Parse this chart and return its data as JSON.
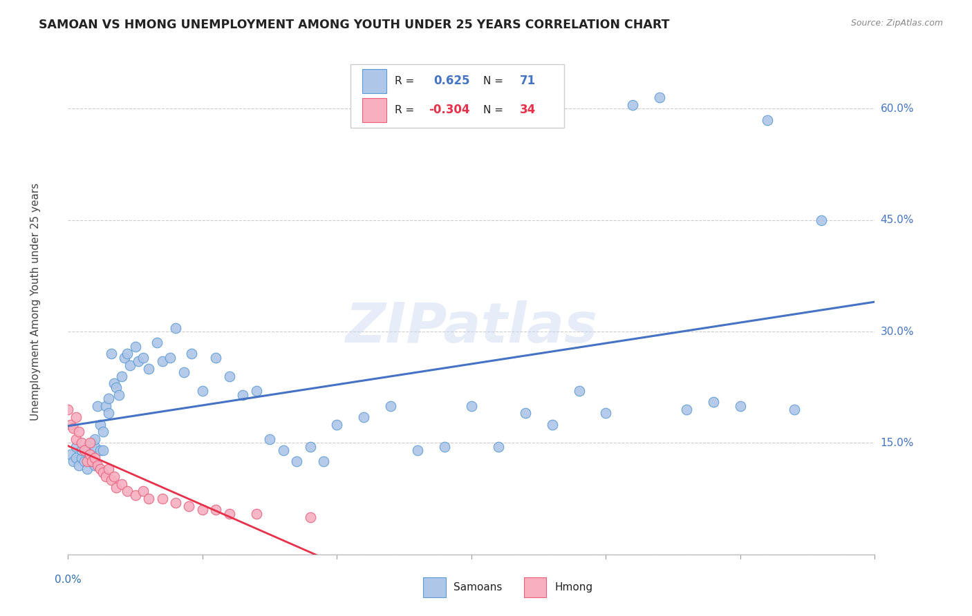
{
  "title": "SAMOAN VS HMONG UNEMPLOYMENT AMONG YOUTH UNDER 25 YEARS CORRELATION CHART",
  "source": "Source: ZipAtlas.com",
  "ylabel": "Unemployment Among Youth under 25 years",
  "x_min": 0.0,
  "x_max": 0.3,
  "y_min": 0.0,
  "y_max": 0.68,
  "yticks": [
    0.0,
    0.15,
    0.3,
    0.45,
    0.6
  ],
  "ytick_labels": [
    "",
    "15.0%",
    "30.0%",
    "45.0%",
    "60.0%"
  ],
  "r_samoan": 0.625,
  "n_samoan": 71,
  "r_hmong": -0.304,
  "n_hmong": 34,
  "samoan_color": "#aec6e8",
  "hmong_color": "#f8afc0",
  "samoan_edge_color": "#5b9bd5",
  "hmong_edge_color": "#e8607a",
  "trend_samoan_color": "#4472c4",
  "trend_hmong_color": "#e8304a",
  "watermark": "ZIPatlas",
  "samoans_x": [
    0.001,
    0.002,
    0.003,
    0.003,
    0.004,
    0.005,
    0.005,
    0.006,
    0.007,
    0.007,
    0.008,
    0.008,
    0.009,
    0.01,
    0.01,
    0.01,
    0.011,
    0.012,
    0.012,
    0.013,
    0.013,
    0.014,
    0.015,
    0.015,
    0.016,
    0.017,
    0.018,
    0.019,
    0.02,
    0.021,
    0.022,
    0.023,
    0.025,
    0.026,
    0.028,
    0.03,
    0.033,
    0.035,
    0.038,
    0.04,
    0.043,
    0.046,
    0.05,
    0.055,
    0.06,
    0.065,
    0.07,
    0.075,
    0.08,
    0.085,
    0.09,
    0.095,
    0.1,
    0.11,
    0.12,
    0.13,
    0.14,
    0.15,
    0.16,
    0.17,
    0.18,
    0.19,
    0.2,
    0.21,
    0.22,
    0.23,
    0.24,
    0.25,
    0.26,
    0.27,
    0.28
  ],
  "samoans_y": [
    0.135,
    0.125,
    0.13,
    0.145,
    0.12,
    0.13,
    0.14,
    0.125,
    0.115,
    0.145,
    0.135,
    0.125,
    0.15,
    0.12,
    0.145,
    0.155,
    0.2,
    0.175,
    0.14,
    0.165,
    0.14,
    0.2,
    0.21,
    0.19,
    0.27,
    0.23,
    0.225,
    0.215,
    0.24,
    0.265,
    0.27,
    0.255,
    0.28,
    0.26,
    0.265,
    0.25,
    0.285,
    0.26,
    0.265,
    0.305,
    0.245,
    0.27,
    0.22,
    0.265,
    0.24,
    0.215,
    0.22,
    0.155,
    0.14,
    0.125,
    0.145,
    0.125,
    0.175,
    0.185,
    0.2,
    0.14,
    0.145,
    0.2,
    0.145,
    0.19,
    0.175,
    0.22,
    0.19,
    0.605,
    0.615,
    0.195,
    0.205,
    0.2,
    0.585,
    0.195,
    0.45
  ],
  "hmong_x": [
    0.0,
    0.001,
    0.002,
    0.003,
    0.003,
    0.004,
    0.005,
    0.006,
    0.007,
    0.008,
    0.008,
    0.009,
    0.01,
    0.011,
    0.012,
    0.013,
    0.014,
    0.015,
    0.016,
    0.017,
    0.018,
    0.02,
    0.022,
    0.025,
    0.028,
    0.03,
    0.035,
    0.04,
    0.045,
    0.05,
    0.055,
    0.06,
    0.07,
    0.09
  ],
  "hmong_y": [
    0.195,
    0.175,
    0.17,
    0.155,
    0.185,
    0.165,
    0.15,
    0.14,
    0.125,
    0.15,
    0.135,
    0.125,
    0.13,
    0.12,
    0.115,
    0.11,
    0.105,
    0.115,
    0.1,
    0.105,
    0.09,
    0.095,
    0.085,
    0.08,
    0.085,
    0.075,
    0.075,
    0.07,
    0.065,
    0.06,
    0.06,
    0.055,
    0.055,
    0.05
  ]
}
